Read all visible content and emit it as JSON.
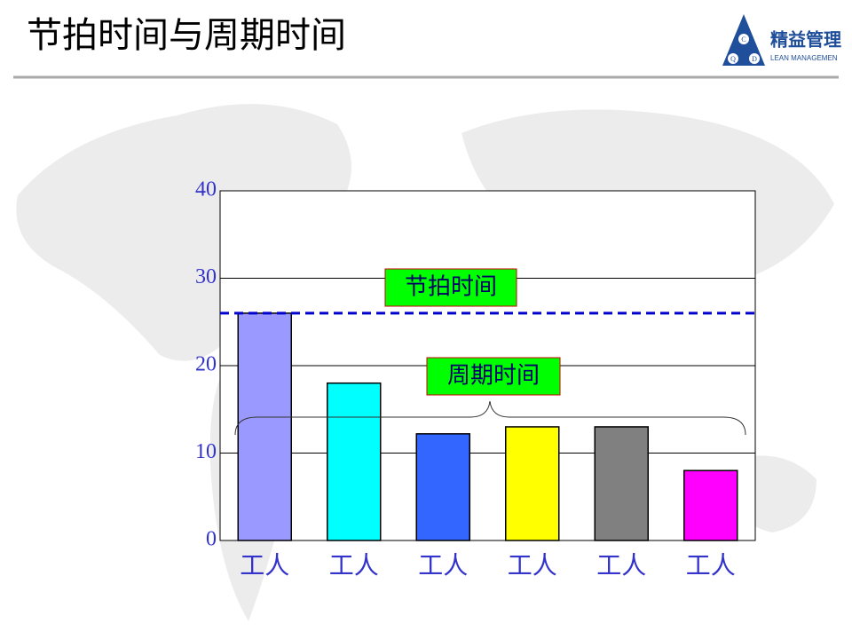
{
  "logo": {
    "name": "精益管理",
    "subtitle": "LEAN MANAGEMEN",
    "letters": [
      "C",
      "Q",
      "D"
    ]
  },
  "chart_data": {
    "type": "bar",
    "title": "节拍时间与周期时间",
    "categories": [
      "工人",
      "工人",
      "工人",
      "工人",
      "工人",
      "工人"
    ],
    "values": [
      26,
      18,
      12.2,
      13,
      13,
      8
    ],
    "colors": [
      "#9999ff",
      "#00ffff",
      "#3366ff",
      "#ffff00",
      "#808080",
      "#ff00ff"
    ],
    "ylim": [
      0,
      40
    ],
    "yticks": [
      0,
      10,
      20,
      30,
      40
    ],
    "grid": true,
    "reference_line": {
      "value": 26,
      "label": "节拍时间",
      "color": "#0000cc"
    },
    "annotation": "周期时间"
  }
}
